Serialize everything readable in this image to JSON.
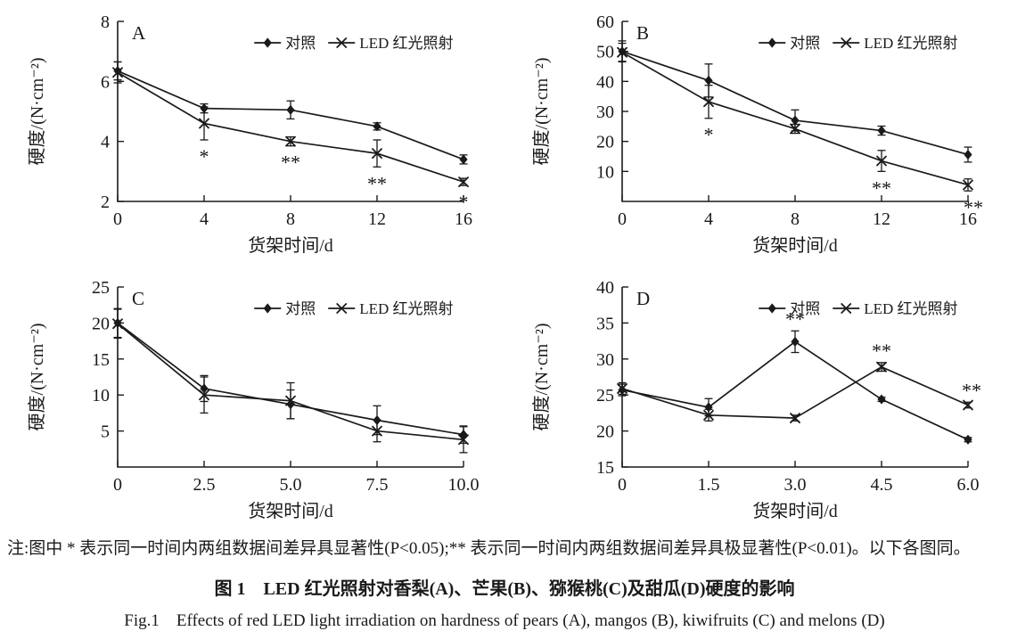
{
  "figure": {
    "note": "注:图中 * 表示同一时间内两组数据间差异具显著性(P<0.05);** 表示同一时间内两组数据间差异具极显著性(P<0.01)。以下各图同。",
    "caption_zh": "图 1　LED 红光照射对香梨(A)、芒果(B)、猕猴桃(C)及甜瓜(D)硬度的影响",
    "caption_en": "Fig.1　Effects of red LED light irradiation on hardness of pears (A), mangos (B), kiwifruits (C) and melons (D)"
  },
  "colors": {
    "ink": "#1a1a1a",
    "background": "#ffffff"
  },
  "chart_data": [
    {
      "type": "line",
      "panel": "A",
      "subject": "pears",
      "xlabel": "货架时间/d",
      "ylabel": "硬度/(N·cm⁻²)",
      "x": [
        0,
        4,
        8,
        12,
        16
      ],
      "xtick_labels": [
        "0",
        "4",
        "8",
        "12",
        "16"
      ],
      "ylim": [
        2,
        8
      ],
      "yticks": [
        2,
        4,
        6,
        8
      ],
      "grid": false,
      "legend_position": "top-right-inside",
      "legend": [
        "对照",
        "LED 红光照射"
      ],
      "series": [
        {
          "name": "对照",
          "marker": "diamond",
          "values": [
            6.35,
            5.1,
            5.05,
            4.5,
            3.4
          ],
          "errors": [
            0.3,
            0.15,
            0.3,
            0.12,
            0.15
          ]
        },
        {
          "name": "LED 红光照射",
          "marker": "x",
          "values": [
            6.3,
            4.6,
            4.0,
            3.6,
            2.65
          ],
          "errors": [
            0.35,
            0.55,
            0.15,
            0.45,
            0.12
          ]
        }
      ],
      "annotations": [
        {
          "series": 1,
          "point": 1,
          "text": "*",
          "position": "below",
          "dx": 0
        },
        {
          "series": 1,
          "point": 2,
          "text": "**",
          "position": "below",
          "dx": 0
        },
        {
          "series": 1,
          "point": 3,
          "text": "**",
          "position": "below",
          "dx": 0
        },
        {
          "series": 1,
          "point": 4,
          "text": "*",
          "position": "below",
          "dx": 0
        }
      ]
    },
    {
      "type": "line",
      "panel": "B",
      "subject": "mangos",
      "xlabel": "货架时间/d",
      "ylabel": "硬度/(N·cm⁻²)",
      "x": [
        0,
        4,
        8,
        12,
        16
      ],
      "xtick_labels": [
        "0",
        "4",
        "8",
        "12",
        "16"
      ],
      "ylim": [
        0,
        60
      ],
      "yticks": [
        10,
        20,
        30,
        40,
        50,
        60
      ],
      "grid": false,
      "legend_position": "top-right-inside",
      "legend": [
        "对照",
        "LED 红光照射"
      ],
      "series": [
        {
          "name": "对照",
          "marker": "diamond",
          "values": [
            50,
            40.3,
            27,
            23.6,
            15.6
          ],
          "errors": [
            3.5,
            5.5,
            3.5,
            1.5,
            2.5
          ]
        },
        {
          "name": "LED 红光照射",
          "marker": "x",
          "values": [
            49.7,
            33.2,
            24.2,
            13.5,
            5.5
          ],
          "errors": [
            3,
            5.5,
            1.5,
            3.5,
            2
          ]
        }
      ],
      "annotations": [
        {
          "series": 1,
          "point": 1,
          "text": "*",
          "position": "below",
          "dx": 0
        },
        {
          "series": 1,
          "point": 3,
          "text": "**",
          "position": "below",
          "dx": 0
        },
        {
          "series": 1,
          "point": 4,
          "text": "**",
          "position": "below",
          "dx": 6
        }
      ]
    },
    {
      "type": "line",
      "panel": "C",
      "subject": "kiwifruits",
      "xlabel": "货架时间/d",
      "ylabel": "硬度/(N·cm⁻²)",
      "x": [
        0,
        2.5,
        5,
        7.5,
        10
      ],
      "xtick_labels": [
        "0",
        "2.5",
        "5.0",
        "7.5",
        "10.0"
      ],
      "ylim": [
        0,
        25
      ],
      "yticks": [
        5,
        10,
        15,
        20,
        25
      ],
      "grid": false,
      "legend_position": "top-right-inside",
      "legend": [
        "对照",
        "LED 红光照射"
      ],
      "series": [
        {
          "name": "对照",
          "marker": "diamond",
          "values": [
            20,
            10.9,
            8.7,
            6.5,
            4.5
          ],
          "errors": [
            2,
            1.8,
            2,
            2,
            1.2
          ]
        },
        {
          "name": "LED 红光照射",
          "marker": "x",
          "values": [
            19.9,
            10,
            9.2,
            5,
            3.8
          ],
          "errors": [
            2,
            2.5,
            2.5,
            1.5,
            1.8
          ]
        }
      ],
      "annotations": []
    },
    {
      "type": "line",
      "panel": "D",
      "subject": "melons",
      "xlabel": "货架时间/d",
      "ylabel": "硬度/(N·cm⁻²)",
      "x": [
        0,
        1.5,
        3,
        4.5,
        6
      ],
      "xtick_labels": [
        "0",
        "1.5",
        "3.0",
        "4.5",
        "6.0"
      ],
      "ylim": [
        15,
        40
      ],
      "yticks": [
        15,
        20,
        25,
        30,
        35,
        40
      ],
      "grid": false,
      "legend_position": "top-right-inside",
      "legend": [
        "对照",
        "LED 红光照射"
      ],
      "series": [
        {
          "name": "对照",
          "marker": "diamond",
          "values": [
            25.7,
            23.3,
            32.4,
            24.4,
            18.8
          ],
          "errors": [
            0.8,
            1.2,
            1.5,
            0.3,
            0.3
          ]
        },
        {
          "name": "LED 红光照射",
          "marker": "x",
          "values": [
            25.9,
            22.2,
            21.8,
            28.9,
            23.6
          ],
          "errors": [
            0.8,
            0.8,
            0.4,
            0.6,
            0.4
          ]
        }
      ],
      "annotations": [
        {
          "series": 0,
          "point": 2,
          "text": "**",
          "position": "above",
          "dx": 0
        },
        {
          "series": 1,
          "point": 3,
          "text": "**",
          "position": "above",
          "dx": 0
        },
        {
          "series": 1,
          "point": 4,
          "text": "**",
          "position": "above",
          "dx": 4
        }
      ]
    }
  ]
}
